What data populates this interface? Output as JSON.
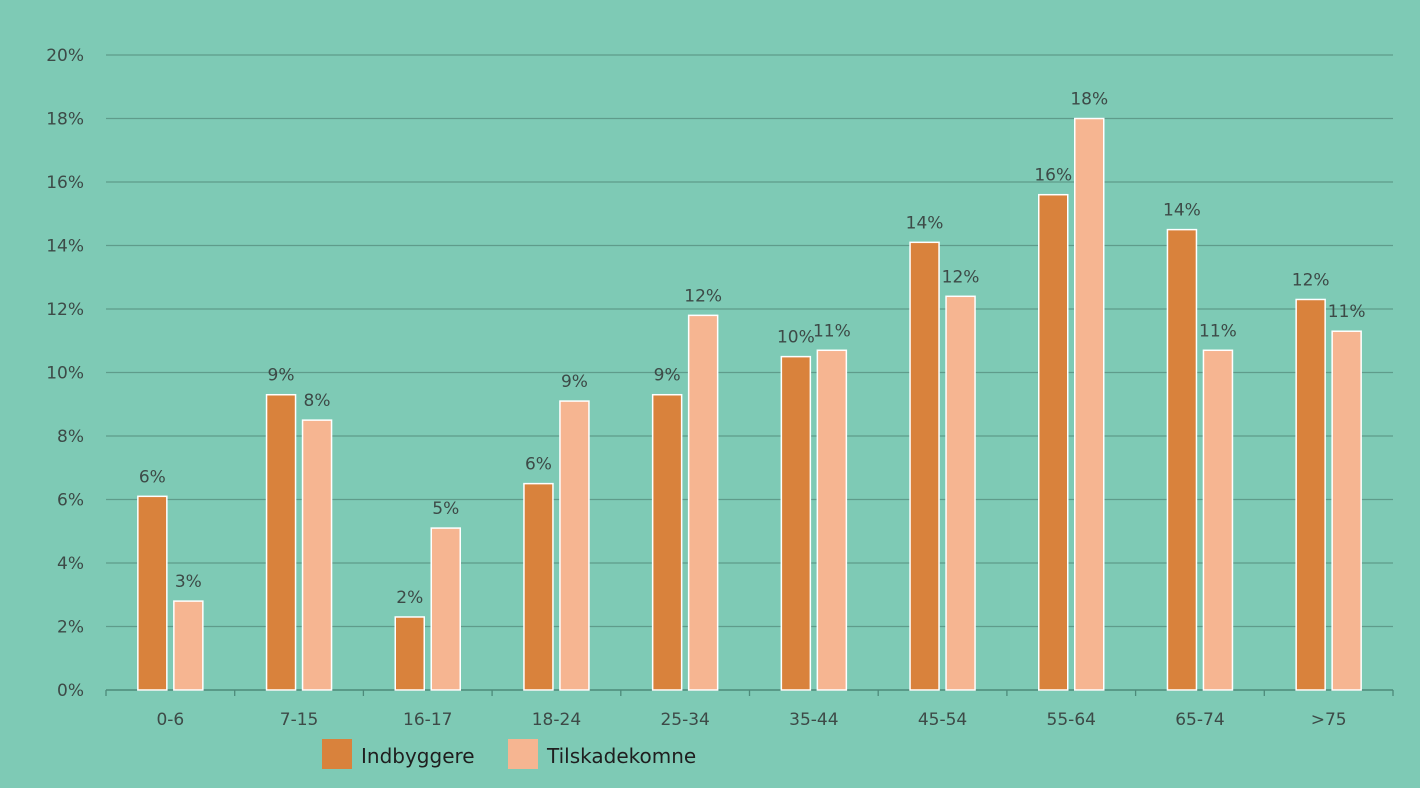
{
  "chart_data": {
    "type": "bar",
    "categories": [
      "0-6",
      "7-15",
      "16-17",
      "18-24",
      "25-34",
      "35-44",
      "45-54",
      "55-64",
      "65-74",
      ">75"
    ],
    "series": [
      {
        "name": "Indbyggere",
        "color": "#d9823c",
        "values": [
          6.1,
          9.3,
          2.3,
          6.5,
          9.3,
          10.5,
          14.1,
          15.6,
          14.5,
          12.3
        ],
        "labels": [
          "6%",
          "9%",
          "2%",
          "6%",
          "9%",
          "10%",
          "14%",
          "16%",
          "14%",
          "12%"
        ]
      },
      {
        "name": "Tilskadekomne",
        "color": "#f6b591",
        "values": [
          2.8,
          8.5,
          5.1,
          9.1,
          11.8,
          10.7,
          12.4,
          18.0,
          10.7,
          11.3
        ],
        "labels": [
          "3%",
          "8%",
          "5%",
          "9%",
          "12%",
          "11%",
          "12%",
          "18%",
          "11%",
          "11%"
        ]
      }
    ],
    "ylim": [
      0,
      20
    ],
    "yticks": [
      "0%",
      "2%",
      "4%",
      "6%",
      "8%",
      "10%",
      "12%",
      "14%",
      "16%",
      "18%",
      "20%"
    ],
    "grid": true,
    "legend_position": "bottom-left",
    "title": "",
    "xlabel": "",
    "ylabel": ""
  },
  "colors": {
    "background": "#7ecab5",
    "gridline": "#5f9c8b",
    "axis": "#4d8a7a"
  }
}
